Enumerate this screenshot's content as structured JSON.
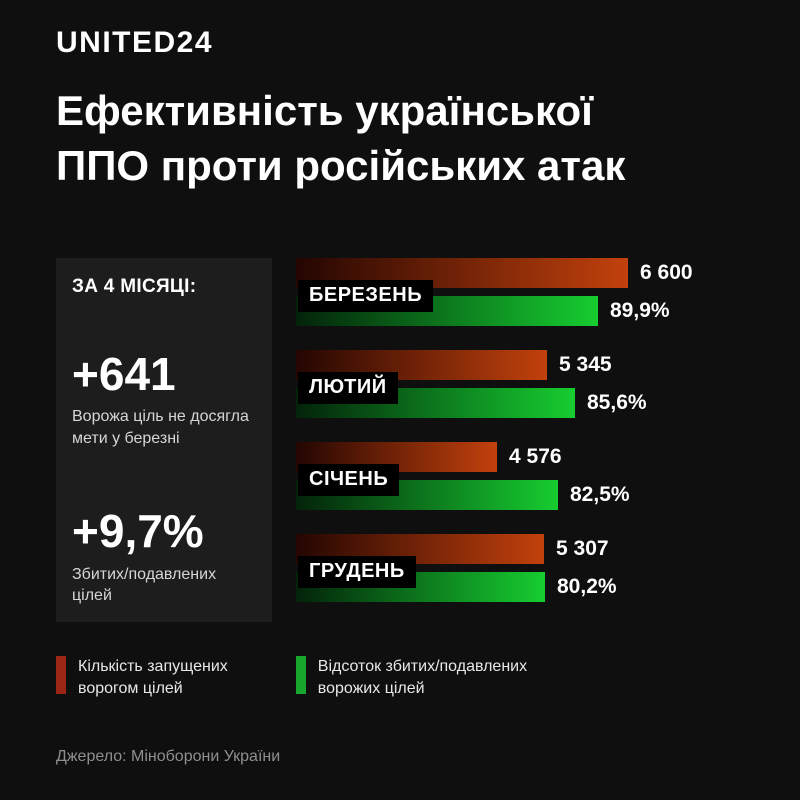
{
  "header": {
    "logo": "UNITED24"
  },
  "title": {
    "line1": "Ефективність української",
    "line2": "ППО проти російських атак"
  },
  "summary_panel": {
    "heading": "ЗА 4 МІСЯЦІ:",
    "stat1_value": "+641",
    "stat1_caption": "Ворожа ціль не досягла мети у березні",
    "stat2_value": "+9,7%",
    "stat2_caption": "Збитих/подавлених цілей"
  },
  "chart_data": {
    "type": "bar",
    "orientation": "horizontal",
    "title": "Ефективність української ППО проти російських атак",
    "categories": [
      "БЕРЕЗЕНЬ",
      "ЛЮТИЙ",
      "СІЧЕНЬ",
      "ГРУДЕНЬ"
    ],
    "series": [
      {
        "name": "Кількість запущених ворогом цілей",
        "values": [
          6600,
          5345,
          4576,
          5307
        ],
        "labels": [
          "6 600",
          "5 345",
          "4 576",
          "5 307"
        ],
        "color_dark": "#240602",
        "color_bright": "#c2410c"
      },
      {
        "name": "Відсоток збитих/подавлених ворожих цілей",
        "values": [
          89.9,
          85.6,
          82.5,
          80.2
        ],
        "labels": [
          "89,9%",
          "85,6%",
          "82,5%",
          "80,2%"
        ],
        "color_dark": "#03230a",
        "color_bright": "#16cd30"
      }
    ],
    "groups": [
      {
        "month": "БЕРЕЗЕНЬ",
        "launched": 6600,
        "launched_label": "6 600",
        "intercepted": 89.9,
        "intercepted_label": "89,9%"
      },
      {
        "month": "ЛЮТИЙ",
        "launched": 5345,
        "launched_label": "5 345",
        "intercepted": 85.6,
        "intercepted_label": "85,6%"
      },
      {
        "month": "СІЧЕНЬ",
        "launched": 4576,
        "launched_label": "4 576",
        "intercepted": 82.5,
        "intercepted_label": "82,5%"
      },
      {
        "month": "ГРУДЕНЬ",
        "launched": 5307,
        "launched_label": "5 307",
        "intercepted": 80.2,
        "intercepted_label": "80,2%"
      }
    ],
    "legend_position": "bottom",
    "grid": false
  },
  "legend": {
    "item1": {
      "line1": "Кількість запущених",
      "line2": "ворогом цілей",
      "color": "#9c2615"
    },
    "item2": {
      "line1": "Відсоток збитих/подавлених",
      "line2": "ворожих цілей",
      "color": "#16a72c"
    }
  },
  "source": "Джерело: Міноборони України"
}
